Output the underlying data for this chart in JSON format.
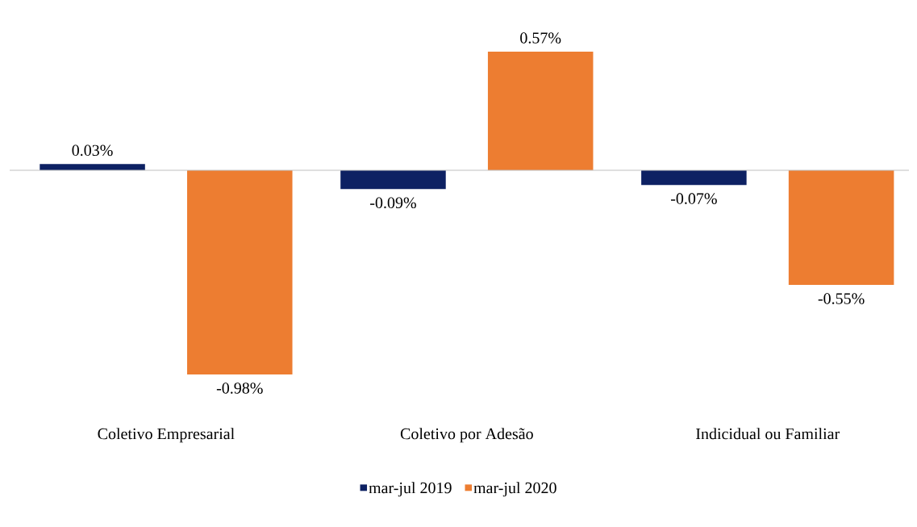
{
  "chart_data": {
    "type": "bar",
    "categories": [
      "Coletivo Empresarial",
      "Coletivo por Adesão",
      "Indicidual ou Familiar"
    ],
    "series": [
      {
        "name": "mar-jul 2019",
        "color": "#0d2163",
        "values": [
          0.03,
          -0.09,
          -0.07
        ],
        "value_labels": [
          "0.03%",
          "-0.09%",
          "-0.07%"
        ]
      },
      {
        "name": "mar-jul 2020",
        "color": "#ed7d31",
        "values": [
          -0.98,
          0.57,
          -0.55
        ],
        "value_labels": [
          "-0.98%",
          "0.57%",
          "-0.55%"
        ]
      }
    ],
    "legend": "bottom"
  }
}
